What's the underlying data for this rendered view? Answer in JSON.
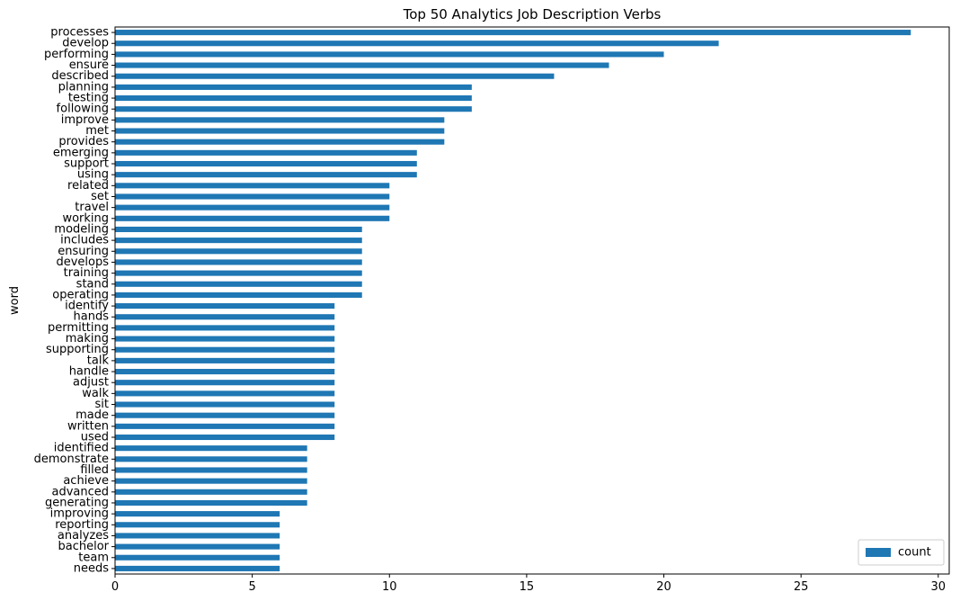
{
  "chart_data": {
    "type": "bar",
    "orientation": "horizontal",
    "title": "Top 50 Analytics Job Description Verbs",
    "xlabel": "",
    "ylabel": "word",
    "xlim": [
      0,
      30.4
    ],
    "xticks": [
      0,
      5,
      10,
      15,
      20,
      25,
      30
    ],
    "grid": false,
    "legend": {
      "placement": "lower-right",
      "entries": [
        "count"
      ]
    },
    "bar_color": "#1f77b4",
    "categories": [
      "processes",
      "develop",
      "performing",
      "ensure",
      "described",
      "planning",
      "testing",
      "following",
      "improve",
      "met",
      "provides",
      "emerging",
      "support",
      "using",
      "related",
      "set",
      "travel",
      "working",
      "modeling",
      "includes",
      "ensuring",
      "develops",
      "training",
      "stand",
      "operating",
      "identify",
      "hands",
      "permitting",
      "making",
      "supporting",
      "talk",
      "handle",
      "adjust",
      "walk",
      "sit",
      "made",
      "written",
      "used",
      "identified",
      "demonstrate",
      "filled",
      "achieve",
      "advanced",
      "generating",
      "improving",
      "reporting",
      "analyzes",
      "bachelor",
      "team",
      "needs"
    ],
    "series": [
      {
        "name": "count",
        "values": [
          29,
          22,
          20,
          18,
          16,
          13,
          13,
          13,
          12,
          12,
          12,
          11,
          11,
          11,
          10,
          10,
          10,
          10,
          9,
          9,
          9,
          9,
          9,
          9,
          9,
          8,
          8,
          8,
          8,
          8,
          8,
          8,
          8,
          8,
          8,
          8,
          8,
          8,
          7,
          7,
          7,
          7,
          7,
          7,
          6,
          6,
          6,
          6,
          6,
          6
        ]
      }
    ]
  }
}
